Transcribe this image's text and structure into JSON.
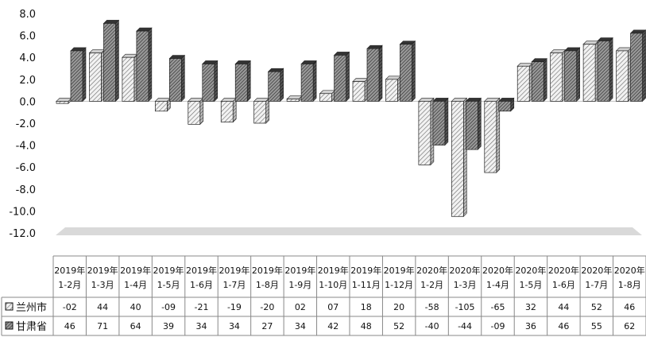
{
  "chart_data": {
    "type": "bar",
    "title": "",
    "xlabel": "",
    "ylabel": "",
    "ylim": [
      -12,
      8
    ],
    "y_ticks": [
      "8.0",
      "6.0",
      "4.0",
      "2.0",
      "0.0",
      "-2.0",
      "-4.0",
      "-6.0",
      "-8.0",
      "-10.0",
      "-12.0"
    ],
    "grid": false,
    "legend": "data-table",
    "chart_style": "3d-hatched",
    "categories": [
      {
        "year": "2019年",
        "months": "1-2月"
      },
      {
        "year": "2019年",
        "months": "1-3月"
      },
      {
        "year": "2019年",
        "months": "1-4月"
      },
      {
        "year": "2019年",
        "months": "1-5月"
      },
      {
        "year": "2019年",
        "months": "1-6月"
      },
      {
        "year": "2019年",
        "months": "1-7月"
      },
      {
        "year": "2019年",
        "months": "1-8月"
      },
      {
        "year": "2019年",
        "months": "1-9月"
      },
      {
        "year": "2019年",
        "months": "1-10月"
      },
      {
        "year": "2019年",
        "months": "1-11月"
      },
      {
        "year": "2019年",
        "months": "1-12月"
      },
      {
        "year": "2020年",
        "months": "1-2月"
      },
      {
        "year": "2020年",
        "months": "1-3月"
      },
      {
        "year": "2020年",
        "months": "1-4月"
      },
      {
        "year": "2020年",
        "months": "1-5月"
      },
      {
        "year": "2020年",
        "months": "1-6月"
      },
      {
        "year": "2020年",
        "months": "1-7月"
      },
      {
        "year": "2020年",
        "months": "1-8月"
      }
    ],
    "series": [
      {
        "name": "兰州市",
        "color": "#e6e6e6",
        "values": [
          -0.2,
          4.4,
          4.0,
          -0.9,
          -2.1,
          -1.9,
          -2.0,
          0.2,
          0.7,
          1.8,
          2.0,
          -5.8,
          -10.5,
          -6.5,
          3.2,
          4.4,
          5.2,
          4.6
        ],
        "labels": [
          "-02",
          "44",
          "40",
          "-09",
          "-21",
          "-19",
          "-20",
          "02",
          "07",
          "18",
          "20",
          "-58",
          "-105",
          "-65",
          "32",
          "44",
          "52",
          "46"
        ]
      },
      {
        "name": "甘肃省",
        "color": "#7a7a7a",
        "values": [
          4.6,
          7.1,
          6.4,
          3.9,
          3.4,
          3.4,
          2.7,
          3.4,
          4.2,
          4.8,
          5.2,
          -4.0,
          -4.4,
          -0.9,
          3.6,
          4.6,
          5.5,
          6.2
        ],
        "labels": [
          "46",
          "71",
          "64",
          "39",
          "34",
          "34",
          "27",
          "34",
          "42",
          "48",
          "52",
          "-40",
          "-44",
          "-09",
          "36",
          "46",
          "55",
          "62"
        ]
      }
    ]
  }
}
